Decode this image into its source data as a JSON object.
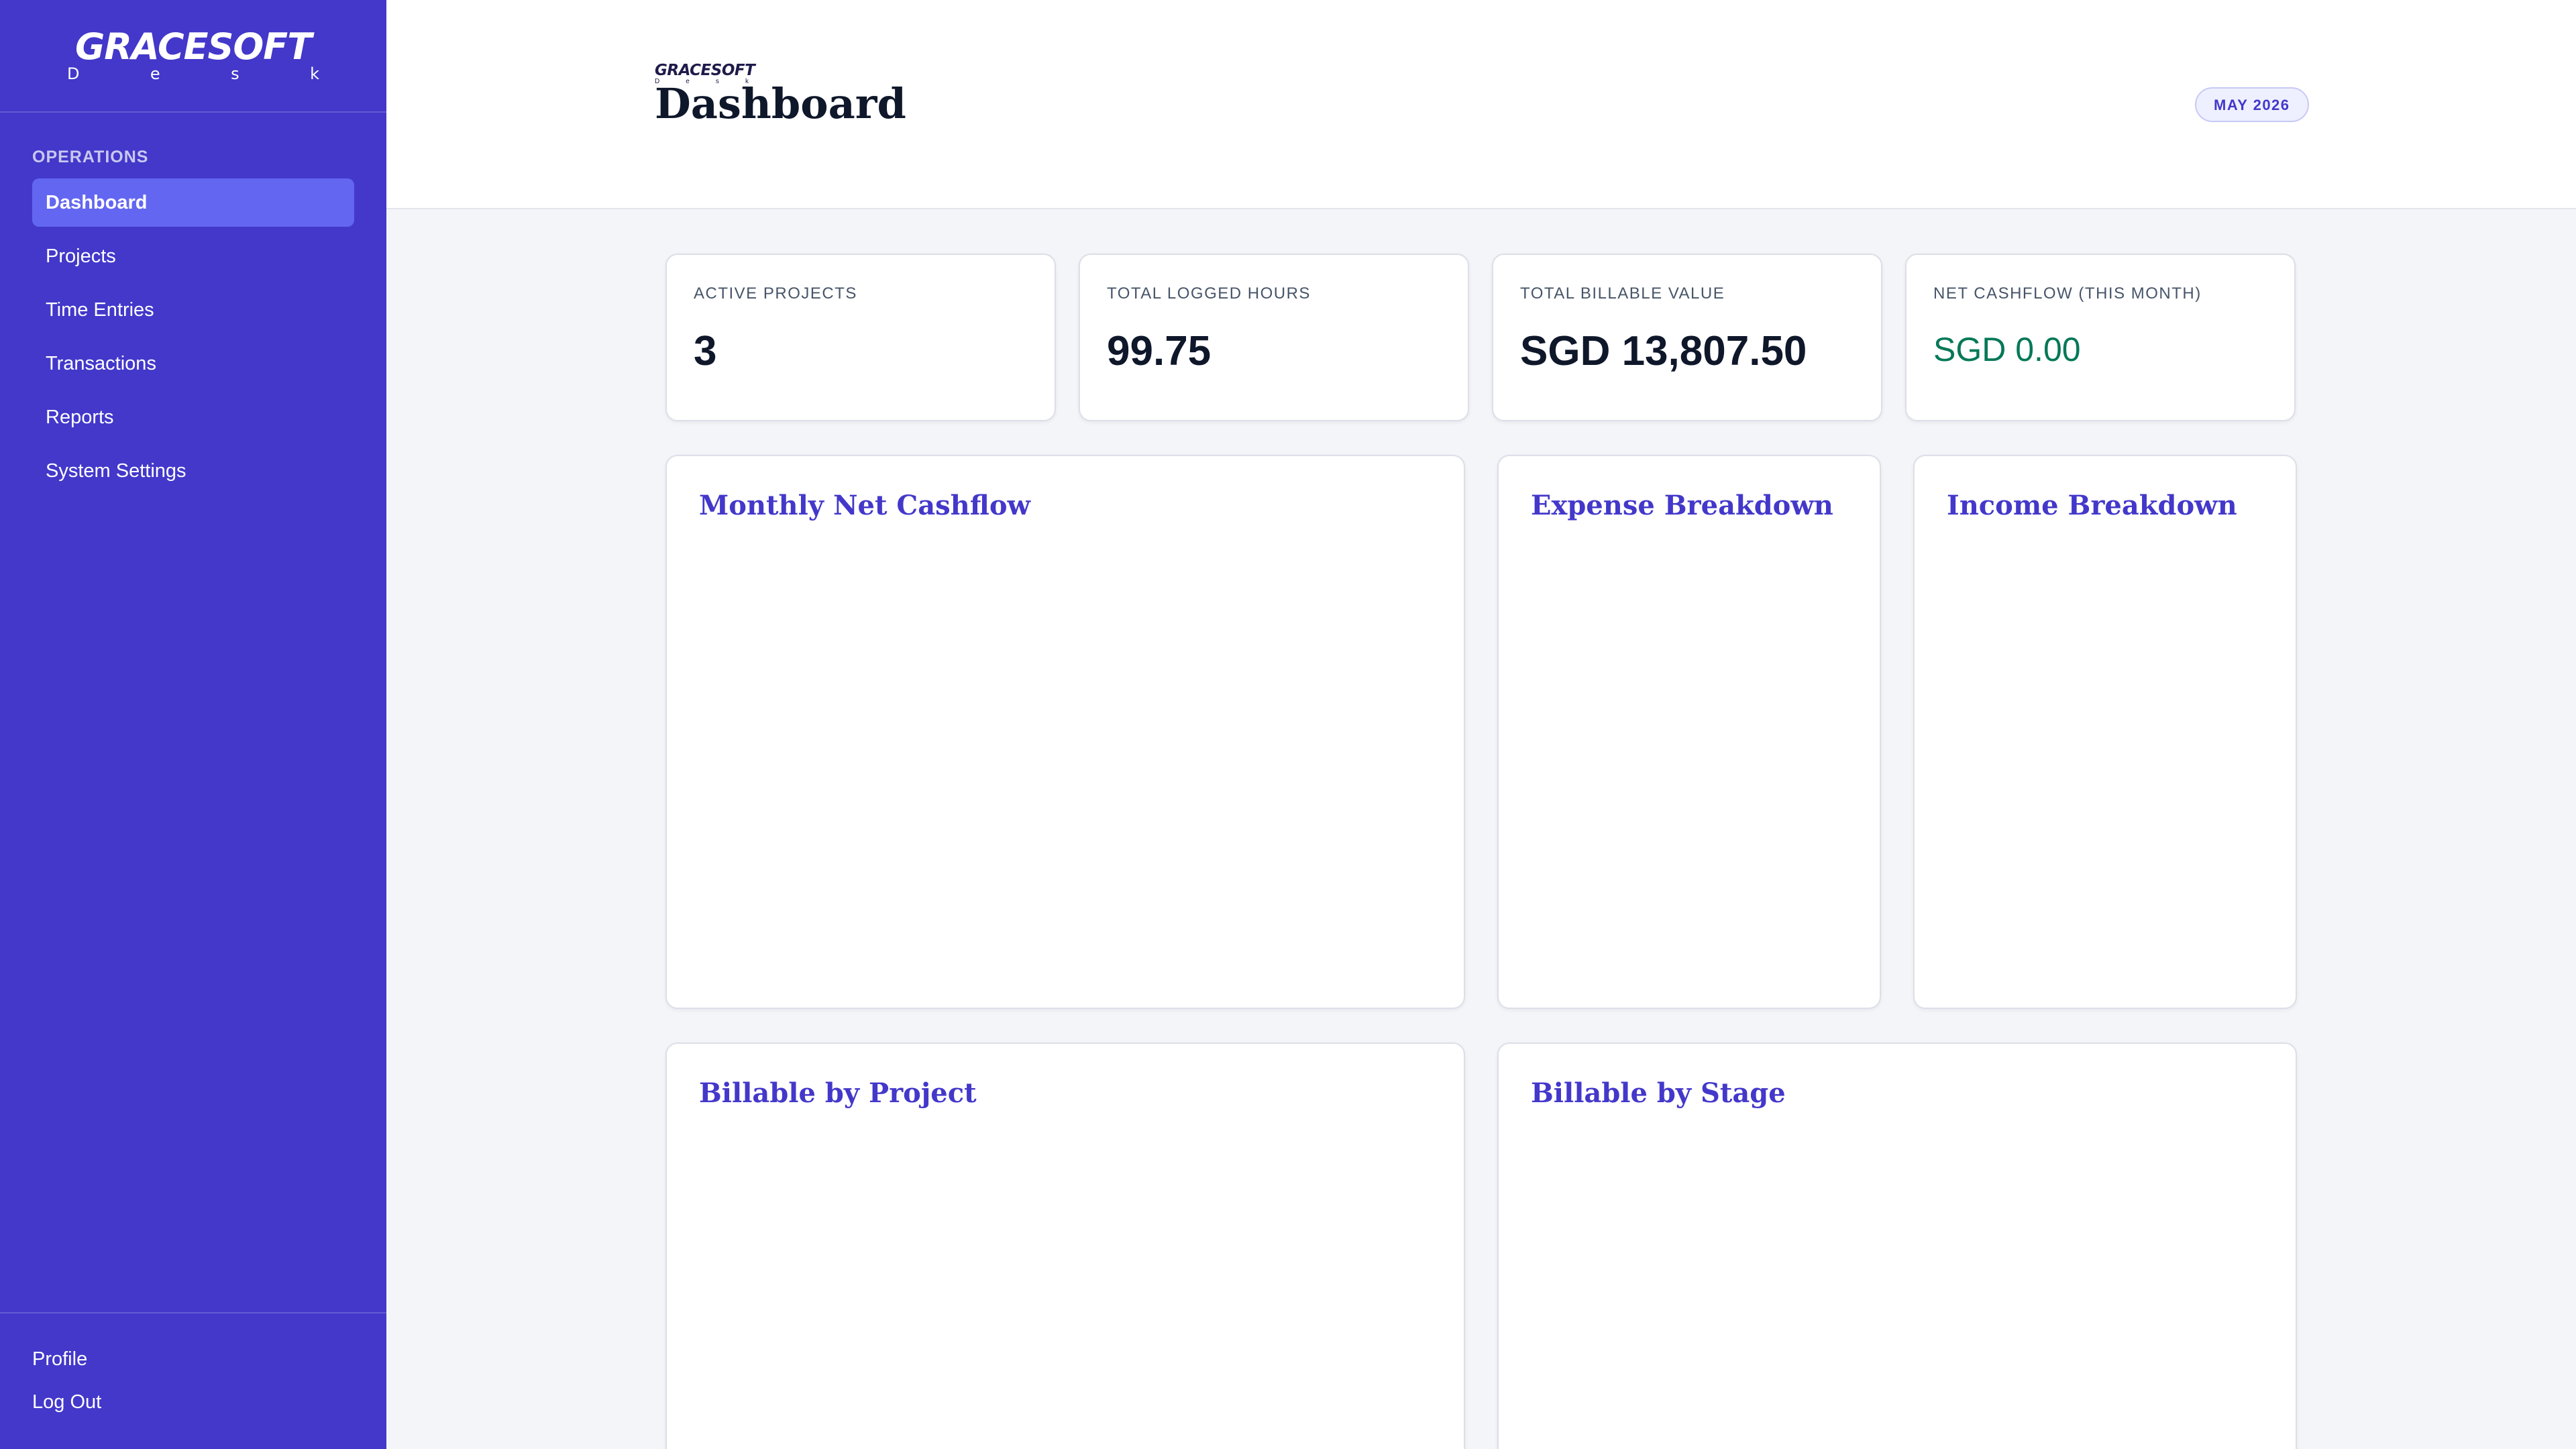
{
  "brand": {
    "name": "GRACESOFT",
    "sub": [
      "D",
      "e",
      "s",
      "k"
    ]
  },
  "sidebar": {
    "section_label": "OPERATIONS",
    "items": [
      {
        "label": "Dashboard",
        "active": true
      },
      {
        "label": "Projects",
        "active": false
      },
      {
        "label": "Time Entries",
        "active": false
      },
      {
        "label": "Transactions",
        "active": false
      },
      {
        "label": "Reports",
        "active": false
      },
      {
        "label": "System Settings",
        "active": false
      }
    ],
    "bottom": {
      "profile": "Profile",
      "logout": "Log Out"
    }
  },
  "header": {
    "logo_name": "GRACESOFT",
    "logo_sub": [
      "D",
      "e",
      "s",
      "k"
    ],
    "title": "Dashboard",
    "month_badge": "MAY 2026"
  },
  "stats": [
    {
      "label": "ACTIVE PROJECTS",
      "value": "3"
    },
    {
      "label": "TOTAL LOGGED HOURS",
      "value": "99.75"
    },
    {
      "label": "TOTAL BILLABLE VALUE",
      "value": "SGD 13,807.50"
    },
    {
      "label": "NET CASHFLOW (THIS MONTH)",
      "value": "SGD 0.00"
    }
  ],
  "charts": {
    "monthly_net_cashflow": "Monthly Net Cashflow",
    "expense_breakdown": "Expense Breakdown",
    "income_breakdown": "Income Breakdown",
    "billable_by_project": "Billable by Project",
    "billable_by_stage": "Billable by Stage"
  },
  "colors": {
    "sidebar_bg": "#4338ca",
    "active_item": "#6366f1",
    "accent": "#4338ca",
    "positive": "#047857",
    "page_bg": "#f4f5f9"
  }
}
